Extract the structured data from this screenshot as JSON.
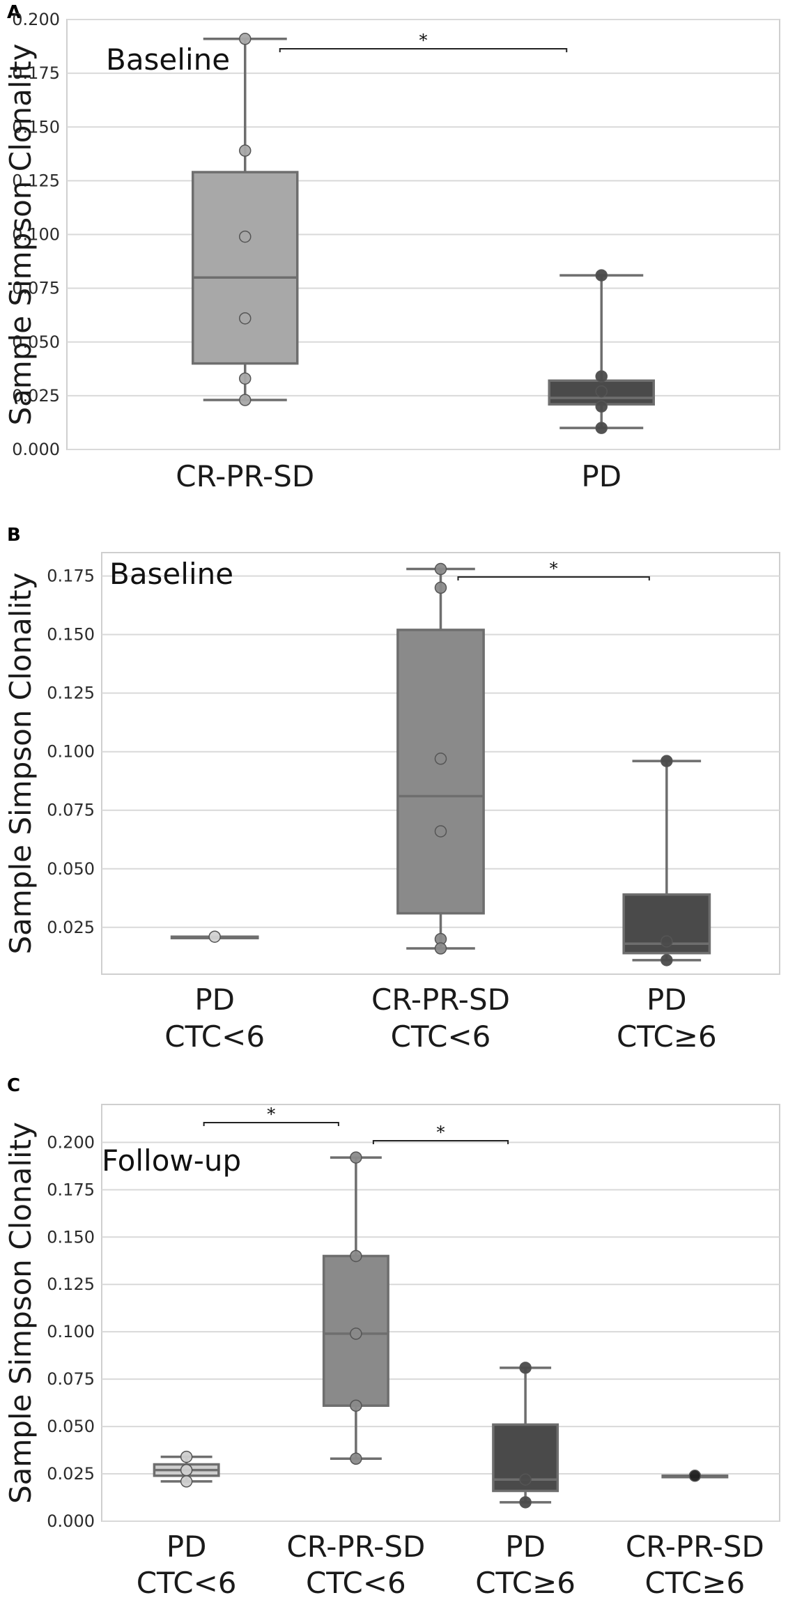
{
  "chart_data": [
    {
      "panel": "A",
      "type": "box",
      "annotation": "Baseline",
      "ylabel": "Sample Simpson Clonality",
      "ylim": [
        0.0,
        0.2
      ],
      "yticks": [
        "0.000",
        "0.025",
        "0.050",
        "0.075",
        "0.100",
        "0.125",
        "0.150",
        "0.175",
        "0.200"
      ],
      "grid": true,
      "groups": [
        {
          "label": [
            "CR-PR-SD"
          ],
          "color": "#a8a8a8",
          "whisker_low": 0.023,
          "q1": 0.04,
          "median": 0.08,
          "q3": 0.129,
          "whisker_high": 0.191,
          "points": [
            0.191,
            0.139,
            0.099,
            0.061,
            0.033,
            0.023
          ]
        },
        {
          "label": [
            "PD"
          ],
          "color": "#4a4a4a",
          "whisker_low": 0.01,
          "q1": 0.021,
          "median": 0.024,
          "q3": 0.032,
          "whisker_high": 0.081,
          "points": [
            0.081,
            0.034,
            0.027,
            0.02,
            0.01
          ]
        }
      ],
      "significance": [
        {
          "from": 0,
          "to": 1,
          "label": "*"
        }
      ]
    },
    {
      "panel": "B",
      "type": "box",
      "annotation": "Baseline",
      "ylabel": "Sample Simpson Clonality",
      "ylim": [
        0.005,
        0.185
      ],
      "yticks": [
        "0.025",
        "0.050",
        "0.075",
        "0.100",
        "0.125",
        "0.150",
        "0.175"
      ],
      "grid": true,
      "groups": [
        {
          "label": [
            "PD",
            "CTC<6"
          ],
          "color": "#d3d3d3",
          "whisker_low": 0.021,
          "q1": 0.021,
          "median": 0.021,
          "q3": 0.021,
          "whisker_high": 0.021,
          "points": [
            0.021
          ]
        },
        {
          "label": [
            "CR-PR-SD",
            "CTC<6"
          ],
          "color": "#8a8a8a",
          "whisker_low": 0.016,
          "q1": 0.031,
          "median": 0.081,
          "q3": 0.152,
          "whisker_high": 0.178,
          "points": [
            0.178,
            0.17,
            0.097,
            0.066,
            0.02,
            0.016
          ]
        },
        {
          "label": [
            "PD",
            "CTC≥6"
          ],
          "color": "#4a4a4a",
          "whisker_low": 0.011,
          "q1": 0.014,
          "median": 0.018,
          "q3": 0.039,
          "whisker_high": 0.096,
          "points": [
            0.096,
            0.019,
            0.011
          ]
        }
      ],
      "significance": [
        {
          "from": 1,
          "to": 2,
          "label": "*"
        }
      ]
    },
    {
      "panel": "C",
      "type": "box",
      "annotation": "Follow-up",
      "ylabel": "Sample Simpson Clonality",
      "ylim": [
        0.0,
        0.22
      ],
      "yticks": [
        "0.000",
        "0.025",
        "0.050",
        "0.075",
        "0.100",
        "0.125",
        "0.150",
        "0.175",
        "0.200"
      ],
      "grid": true,
      "groups": [
        {
          "label": [
            "PD",
            "CTC<6"
          ],
          "color": "#cfcfcf",
          "whisker_low": 0.021,
          "q1": 0.024,
          "median": 0.027,
          "q3": 0.03,
          "whisker_high": 0.034,
          "points": [
            0.034,
            0.027,
            0.021
          ]
        },
        {
          "label": [
            "CR-PR-SD",
            "CTC<6"
          ],
          "color": "#8a8a8a",
          "whisker_low": 0.033,
          "q1": 0.061,
          "median": 0.099,
          "q3": 0.14,
          "whisker_high": 0.192,
          "points": [
            0.192,
            0.14,
            0.099,
            0.061,
            0.033
          ]
        },
        {
          "label": [
            "PD",
            "CTC≥6"
          ],
          "color": "#4a4a4a",
          "whisker_low": 0.01,
          "q1": 0.016,
          "median": 0.022,
          "q3": 0.051,
          "whisker_high": 0.081,
          "points": [
            0.081,
            0.022,
            0.01
          ]
        },
        {
          "label": [
            "CR-PR-SD",
            "CTC≥6"
          ],
          "color": "#1e1e1e",
          "whisker_low": 0.024,
          "q1": 0.024,
          "median": 0.024,
          "q3": 0.024,
          "whisker_high": 0.024,
          "points": [
            0.024
          ]
        }
      ],
      "significance": [
        {
          "from": 0,
          "to": 1,
          "label": "*"
        },
        {
          "from": 1,
          "to": 2,
          "label": "*"
        }
      ]
    }
  ]
}
